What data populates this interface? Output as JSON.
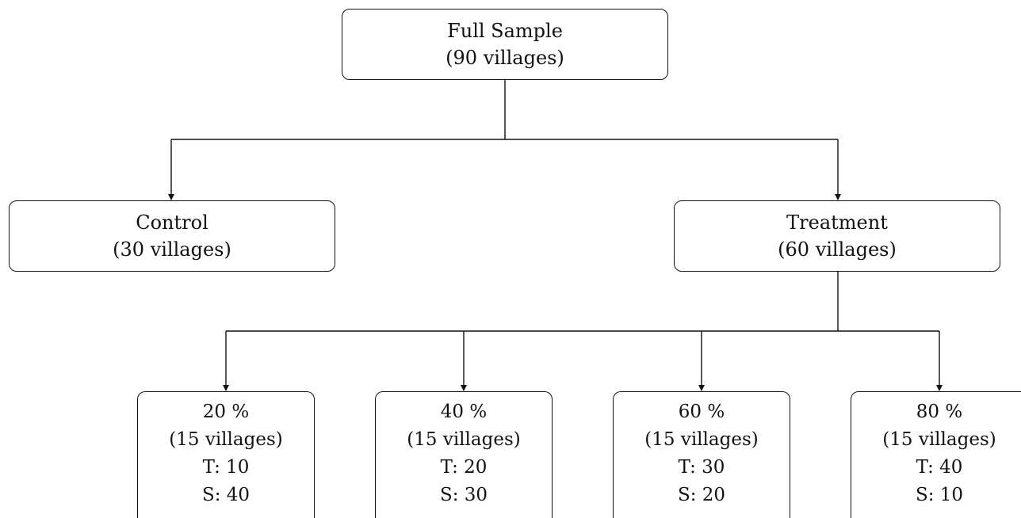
{
  "root": {
    "line1": "Full Sample",
    "line2": "(90 villages)"
  },
  "control": {
    "line1": "Control",
    "line2": "(30 villages)"
  },
  "treatment": {
    "line1": "Treatment",
    "line2": "(60 villages)"
  },
  "groups": [
    {
      "pct": "20 %",
      "villages": "(15 villages)",
      "t": "T: 10",
      "s": "S: 40"
    },
    {
      "pct": "40 %",
      "villages": "(15 villages)",
      "t": "T: 20",
      "s": "S: 30"
    },
    {
      "pct": "60 %",
      "villages": "(15 villages)",
      "t": "T: 30",
      "s": "S: 20"
    },
    {
      "pct": "80 %",
      "villages": "(15 villages)",
      "t": "T: 40",
      "s": "S: 10"
    }
  ]
}
